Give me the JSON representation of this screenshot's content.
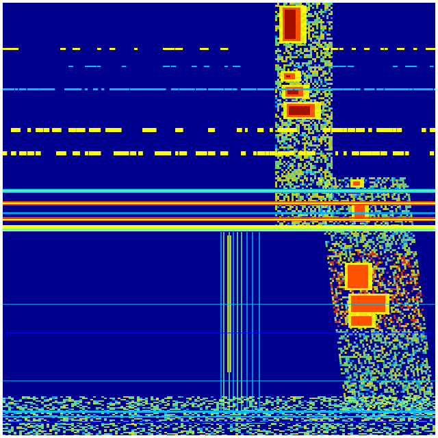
{
  "image": {
    "type": "heatmap",
    "colormap": "jet",
    "axes_shown": false,
    "colorbar_shown": false,
    "colors": {
      "background": "#00008f",
      "low": "#0000ff",
      "mid_low": "#00bfff",
      "mid": "#7fff7f",
      "mid_high": "#ffff00",
      "high": "#ff4000",
      "max": "#8f0000",
      "border": "#ffffff"
    }
  }
}
